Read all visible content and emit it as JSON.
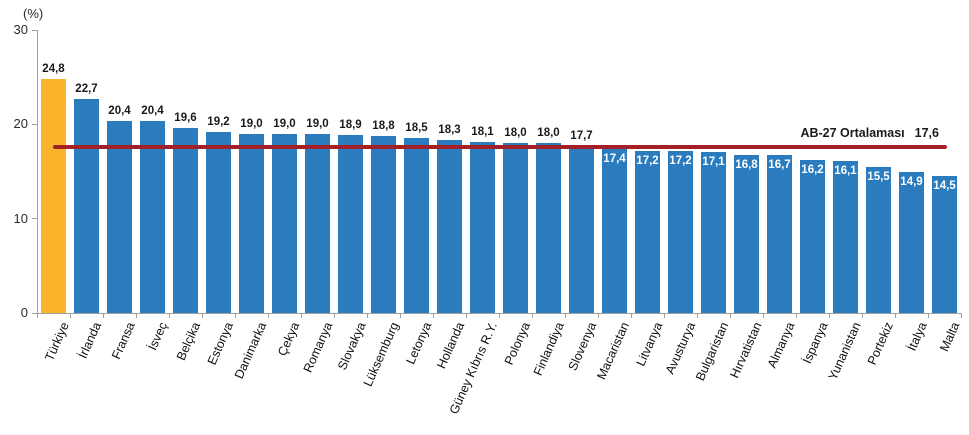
{
  "chart_data": {
    "type": "bar",
    "title": "",
    "unit_label": "(%)",
    "ylim": [
      0,
      30
    ],
    "yticks": [
      30,
      20,
      10,
      0
    ],
    "grid": false,
    "legend_position": "none",
    "bar_color": "#2A7CBE",
    "highlight_category": "Türkiye",
    "highlight_color": "#FAB32A",
    "categories": [
      "Türkiye",
      "İrlanda",
      "Fransa",
      "İsveç",
      "Belçika",
      "Estonya",
      "Danimarka",
      "Çekya",
      "Romanya",
      "Slovakya",
      "Lüksemburg",
      "Letonya",
      "Hollanda",
      "Güney Kıbrıs R.Y.",
      "Polonya",
      "Finlandiya",
      "Slovenya",
      "Macaristan",
      "Litvanya",
      "Avusturya",
      "Bulgaristan",
      "Hırvatistan",
      "Almanya",
      "İspanya",
      "Yunanistan",
      "Portekiz",
      "İtalya",
      "Malta"
    ],
    "values": [
      24.8,
      22.7,
      20.4,
      20.4,
      19.6,
      19.2,
      19.0,
      19.0,
      19.0,
      18.9,
      18.8,
      18.5,
      18.3,
      18.1,
      18.0,
      18.0,
      17.7,
      17.4,
      17.2,
      17.2,
      17.1,
      16.8,
      16.7,
      16.2,
      16.1,
      15.5,
      14.9,
      14.5
    ],
    "value_labels": [
      "24,8",
      "22,7",
      "20,4",
      "20,4",
      "19,6",
      "19,2",
      "19,0",
      "19,0",
      "19,0",
      "18,9",
      "18,8",
      "18,5",
      "18,3",
      "18,1",
      "18,0",
      "18,0",
      "17,7",
      "17,4",
      "17,2",
      "17,2",
      "17,1",
      "16,8",
      "16,7",
      "16,2",
      "16,1",
      "15,5",
      "14,9",
      "14,5"
    ],
    "average_line": {
      "label": "AB-27 Ortalaması",
      "value_label": "17,6",
      "value": 17.6,
      "color": "#A32126"
    }
  }
}
